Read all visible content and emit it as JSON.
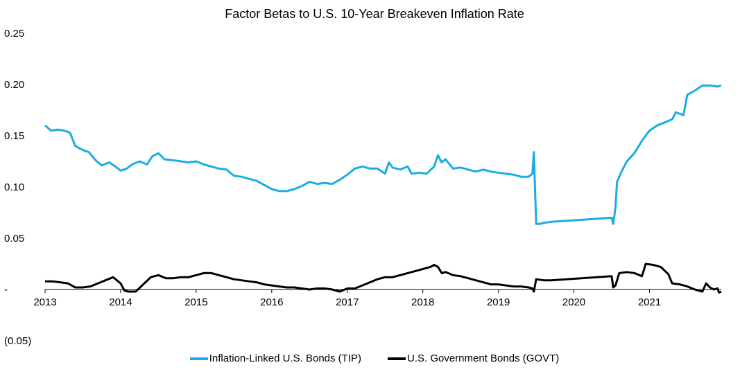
{
  "chart_data": {
    "type": "line",
    "title": "Factor Betas to U.S. 10-Year Breakeven Inflation Rate",
    "xlabel": "",
    "ylabel": "",
    "xlim": [
      2013.0,
      2021.95
    ],
    "ylim": [
      -0.05,
      0.25
    ],
    "grid": false,
    "legend_position": "bottom",
    "x_ticks": [
      2013,
      2014,
      2015,
      2016,
      2017,
      2018,
      2019,
      2020,
      2021
    ],
    "x_tick_labels": [
      "2013",
      "2014",
      "2015",
      "2016",
      "2017",
      "2018",
      "2019",
      "2020",
      "2021"
    ],
    "y_ticks": [
      -0.05,
      0.0,
      0.05,
      0.1,
      0.15,
      0.2,
      0.25
    ],
    "y_tick_labels": [
      "(0.05)",
      "-",
      "0.05",
      "0.10",
      "0.15",
      "0.20",
      "0.25"
    ],
    "series": [
      {
        "name": "Inflation-Linked U.S. Bonds (TIP)",
        "color": "#1aade4",
        "points": [
          [
            2013.0,
            0.16
          ],
          [
            2013.08,
            0.155
          ],
          [
            2013.17,
            0.156
          ],
          [
            2013.25,
            0.155
          ],
          [
            2013.33,
            0.153
          ],
          [
            2013.4,
            0.14
          ],
          [
            2013.5,
            0.136
          ],
          [
            2013.58,
            0.134
          ],
          [
            2013.67,
            0.126
          ],
          [
            2013.75,
            0.121
          ],
          [
            2013.85,
            0.124
          ],
          [
            2013.93,
            0.12
          ],
          [
            2014.0,
            0.116
          ],
          [
            2014.08,
            0.118
          ],
          [
            2014.15,
            0.122
          ],
          [
            2014.25,
            0.125
          ],
          [
            2014.35,
            0.122
          ],
          [
            2014.42,
            0.13
          ],
          [
            2014.5,
            0.133
          ],
          [
            2014.58,
            0.127
          ],
          [
            2014.7,
            0.126
          ],
          [
            2014.8,
            0.125
          ],
          [
            2014.9,
            0.124
          ],
          [
            2015.0,
            0.125
          ],
          [
            2015.1,
            0.122
          ],
          [
            2015.2,
            0.12
          ],
          [
            2015.3,
            0.118
          ],
          [
            2015.4,
            0.117
          ],
          [
            2015.5,
            0.111
          ],
          [
            2015.6,
            0.11
          ],
          [
            2015.7,
            0.108
          ],
          [
            2015.8,
            0.106
          ],
          [
            2015.9,
            0.102
          ],
          [
            2016.0,
            0.098
          ],
          [
            2016.1,
            0.096
          ],
          [
            2016.2,
            0.096
          ],
          [
            2016.3,
            0.098
          ],
          [
            2016.4,
            0.101
          ],
          [
            2016.5,
            0.105
          ],
          [
            2016.6,
            0.103
          ],
          [
            2016.7,
            0.104
          ],
          [
            2016.8,
            0.103
          ],
          [
            2016.9,
            0.107
          ],
          [
            2017.0,
            0.112
          ],
          [
            2017.1,
            0.118
          ],
          [
            2017.2,
            0.12
          ],
          [
            2017.3,
            0.118
          ],
          [
            2017.4,
            0.118
          ],
          [
            2017.5,
            0.113
          ],
          [
            2017.55,
            0.124
          ],
          [
            2017.6,
            0.119
          ],
          [
            2017.7,
            0.117
          ],
          [
            2017.8,
            0.12
          ],
          [
            2017.85,
            0.113
          ],
          [
            2017.95,
            0.114
          ],
          [
            2018.05,
            0.113
          ],
          [
            2018.15,
            0.12
          ],
          [
            2018.2,
            0.131
          ],
          [
            2018.25,
            0.124
          ],
          [
            2018.3,
            0.127
          ],
          [
            2018.4,
            0.118
          ],
          [
            2018.5,
            0.119
          ],
          [
            2018.6,
            0.117
          ],
          [
            2018.7,
            0.115
          ],
          [
            2018.8,
            0.117
          ],
          [
            2018.9,
            0.115
          ],
          [
            2019.0,
            0.114
          ],
          [
            2019.1,
            0.113
          ],
          [
            2019.2,
            0.112
          ],
          [
            2019.3,
            0.11
          ],
          [
            2019.4,
            0.11
          ],
          [
            2019.45,
            0.113
          ],
          [
            2019.47,
            0.134
          ],
          [
            2019.5,
            0.064
          ],
          [
            2019.55,
            0.064
          ],
          [
            2019.6,
            0.065
          ],
          [
            2019.7,
            0.066
          ],
          [
            2019.9,
            0.067
          ],
          [
            2020.1,
            0.068
          ],
          [
            2020.3,
            0.069
          ],
          [
            2020.5,
            0.07
          ],
          [
            2020.52,
            0.064
          ],
          [
            2020.55,
            0.08
          ],
          [
            2020.57,
            0.105
          ],
          [
            2020.63,
            0.115
          ],
          [
            2020.7,
            0.125
          ],
          [
            2020.8,
            0.133
          ],
          [
            2020.9,
            0.145
          ],
          [
            2021.0,
            0.155
          ],
          [
            2021.1,
            0.16
          ],
          [
            2021.2,
            0.163
          ],
          [
            2021.3,
            0.166
          ],
          [
            2021.35,
            0.173
          ],
          [
            2021.45,
            0.17
          ],
          [
            2021.5,
            0.19
          ],
          [
            2021.6,
            0.194
          ],
          [
            2021.7,
            0.199
          ],
          [
            2021.8,
            0.199
          ],
          [
            2021.9,
            0.198
          ],
          [
            2021.95,
            0.199
          ]
        ]
      },
      {
        "name": "U.S. Government Bonds (GOVT)",
        "color": "#000000",
        "points": [
          [
            2013.0,
            0.008
          ],
          [
            2013.1,
            0.008
          ],
          [
            2013.2,
            0.007
          ],
          [
            2013.3,
            0.006
          ],
          [
            2013.4,
            0.002
          ],
          [
            2013.5,
            0.002
          ],
          [
            2013.6,
            0.003
          ],
          [
            2013.7,
            0.006
          ],
          [
            2013.8,
            0.009
          ],
          [
            2013.9,
            0.012
          ],
          [
            2014.0,
            0.006
          ],
          [
            2014.05,
            -0.001
          ],
          [
            2014.1,
            -0.002
          ],
          [
            2014.2,
            -0.002
          ],
          [
            2014.3,
            0.005
          ],
          [
            2014.4,
            0.012
          ],
          [
            2014.5,
            0.014
          ],
          [
            2014.6,
            0.011
          ],
          [
            2014.7,
            0.011
          ],
          [
            2014.8,
            0.012
          ],
          [
            2014.9,
            0.012
          ],
          [
            2015.0,
            0.014
          ],
          [
            2015.1,
            0.016
          ],
          [
            2015.2,
            0.016
          ],
          [
            2015.3,
            0.014
          ],
          [
            2015.4,
            0.012
          ],
          [
            2015.5,
            0.01
          ],
          [
            2015.6,
            0.009
          ],
          [
            2015.7,
            0.008
          ],
          [
            2015.8,
            0.007
          ],
          [
            2015.9,
            0.005
          ],
          [
            2016.0,
            0.004
          ],
          [
            2016.1,
            0.003
          ],
          [
            2016.2,
            0.002
          ],
          [
            2016.3,
            0.002
          ],
          [
            2016.4,
            0.001
          ],
          [
            2016.5,
            0.0
          ],
          [
            2016.6,
            0.001
          ],
          [
            2016.7,
            0.001
          ],
          [
            2016.8,
            0.0
          ],
          [
            2016.9,
            -0.002
          ],
          [
            2017.0,
            0.001
          ],
          [
            2017.1,
            0.001
          ],
          [
            2017.2,
            0.004
          ],
          [
            2017.3,
            0.007
          ],
          [
            2017.4,
            0.01
          ],
          [
            2017.5,
            0.012
          ],
          [
            2017.6,
            0.012
          ],
          [
            2017.7,
            0.014
          ],
          [
            2017.8,
            0.016
          ],
          [
            2017.9,
            0.018
          ],
          [
            2018.0,
            0.02
          ],
          [
            2018.1,
            0.022
          ],
          [
            2018.15,
            0.024
          ],
          [
            2018.2,
            0.022
          ],
          [
            2018.25,
            0.016
          ],
          [
            2018.3,
            0.017
          ],
          [
            2018.4,
            0.014
          ],
          [
            2018.5,
            0.013
          ],
          [
            2018.6,
            0.011
          ],
          [
            2018.7,
            0.009
          ],
          [
            2018.8,
            0.007
          ],
          [
            2018.9,
            0.005
          ],
          [
            2019.0,
            0.005
          ],
          [
            2019.1,
            0.004
          ],
          [
            2019.2,
            0.003
          ],
          [
            2019.3,
            0.003
          ],
          [
            2019.4,
            0.002
          ],
          [
            2019.45,
            0.001
          ],
          [
            2019.47,
            -0.002
          ],
          [
            2019.5,
            0.01
          ],
          [
            2019.6,
            0.009
          ],
          [
            2019.7,
            0.009
          ],
          [
            2019.9,
            0.01
          ],
          [
            2020.1,
            0.011
          ],
          [
            2020.3,
            0.012
          ],
          [
            2020.5,
            0.013
          ],
          [
            2020.52,
            0.002
          ],
          [
            2020.55,
            0.004
          ],
          [
            2020.6,
            0.016
          ],
          [
            2020.7,
            0.017
          ],
          [
            2020.8,
            0.016
          ],
          [
            2020.9,
            0.013
          ],
          [
            2020.95,
            0.025
          ],
          [
            2021.05,
            0.024
          ],
          [
            2021.15,
            0.022
          ],
          [
            2021.25,
            0.015
          ],
          [
            2021.3,
            0.006
          ],
          [
            2021.4,
            0.005
          ],
          [
            2021.5,
            0.003
          ],
          [
            2021.6,
            0.0
          ],
          [
            2021.7,
            -0.002
          ],
          [
            2021.75,
            0.006
          ],
          [
            2021.8,
            0.002
          ],
          [
            2021.85,
            0.0
          ],
          [
            2021.9,
            0.001
          ],
          [
            2021.92,
            -0.003
          ],
          [
            2021.95,
            -0.002
          ]
        ]
      }
    ]
  }
}
